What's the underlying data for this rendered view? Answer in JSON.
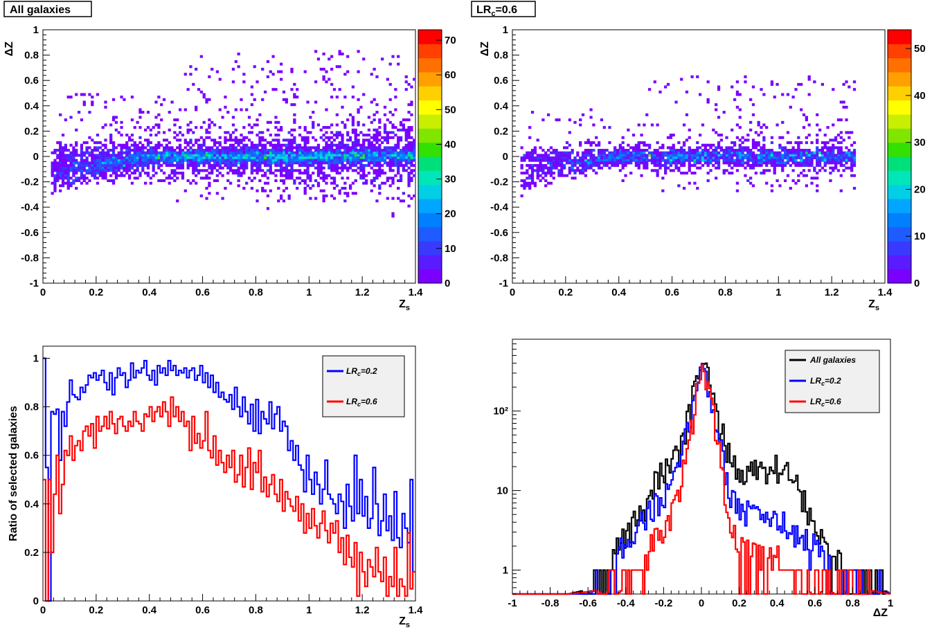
{
  "colors": {
    "blue": "#0000ff",
    "red": "#ff0000",
    "black": "#000000",
    "legend_bg": "#f0f0f0",
    "palette": [
      "#7a00ff",
      "#5a1bff",
      "#3a3aff",
      "#1f5cff",
      "#0080ff",
      "#00a6ff",
      "#00cfe6",
      "#00e6b8",
      "#00e07a",
      "#33e000",
      "#80e600",
      "#c8ef00",
      "#ffff00",
      "#ffd000",
      "#ffa000",
      "#ff7000",
      "#ff4000",
      "#ff0000"
    ]
  },
  "chart_data": [
    {
      "id": "tl",
      "type": "heatmap",
      "title": "All galaxies",
      "xlabel": "Z",
      "xlabel_sub": "s",
      "ylabel": "ΔZ",
      "xlim": [
        0,
        1.4
      ],
      "ylim": [
        -1,
        1
      ],
      "xticks": [
        "0",
        "0.2",
        "0.4",
        "0.6",
        "0.8",
        "1",
        "1.2",
        "1.4"
      ],
      "yticks": [
        "-1",
        "-0.8",
        "-0.6",
        "-0.4",
        "-0.2",
        "0",
        "0.2",
        "0.4",
        "0.6",
        "0.8",
        "1"
      ],
      "colorbar": {
        "min": 0,
        "max": 73,
        "ticks": [
          "0",
          "10",
          "20",
          "30",
          "40",
          "50",
          "60",
          "70"
        ]
      }
    },
    {
      "id": "tr",
      "type": "heatmap",
      "title": "LR",
      "title_sub": "c",
      "title_suffix": "=0.6",
      "xlabel": "Z",
      "xlabel_sub": "s",
      "ylabel": "ΔZ",
      "xlim": [
        0,
        1.4
      ],
      "ylim": [
        -1,
        1
      ],
      "xticks": [
        "0",
        "0.2",
        "0.4",
        "0.6",
        "0.8",
        "1",
        "1.2",
        "1.4"
      ],
      "yticks": [
        "-1",
        "-0.8",
        "-0.6",
        "-0.4",
        "-0.2",
        "0",
        "0.2",
        "0.4",
        "0.6",
        "0.8",
        "1"
      ],
      "colorbar": {
        "min": 0,
        "max": 54,
        "ticks": [
          "0",
          "10",
          "20",
          "30",
          "40",
          "50"
        ]
      }
    },
    {
      "id": "bl",
      "type": "line",
      "xlabel": "Z",
      "xlabel_sub": "s",
      "ylabel": "Ratio of selected galaxies",
      "xlim": [
        0,
        1.4
      ],
      "ylim": [
        0,
        1.05
      ],
      "xticks": [
        "0",
        "0.2",
        "0.4",
        "0.6",
        "0.8",
        "1",
        "1.2",
        "1.4"
      ],
      "yticks": [
        "0",
        "0.2",
        "0.4",
        "0.6",
        "0.8",
        "1"
      ],
      "legend": "top-right",
      "series": [
        {
          "name": "LR",
          "name_sub": "c",
          "name_suffix": "=0.2",
          "color": "#0000ff",
          "values": [
            1.0,
            0.55,
            0.0,
            0.78,
            0.77,
            0.79,
            0.58,
            0.78,
            0.72,
            0.82,
            0.91,
            0.85,
            0.84,
            0.83,
            0.88,
            0.86,
            0.89,
            0.93,
            0.92,
            0.94,
            0.91,
            0.93,
            0.95,
            0.9,
            0.87,
            0.94,
            0.85,
            0.92,
            0.96,
            0.93,
            0.94,
            0.88,
            0.91,
            0.98,
            0.92,
            0.95,
            0.94,
            0.96,
            0.99,
            0.93,
            0.91,
            0.95,
            0.89,
            0.97,
            0.94,
            0.96,
            0.93,
            0.99,
            0.95,
            0.97,
            0.93,
            0.95,
            0.94,
            0.96,
            0.92,
            0.95,
            0.96,
            0.91,
            0.93,
            0.97,
            0.9,
            0.94,
            0.88,
            0.93,
            0.86,
            0.9,
            0.84,
            0.86,
            0.83,
            0.82,
            0.85,
            0.79,
            0.88,
            0.8,
            0.76,
            0.84,
            0.78,
            0.73,
            0.81,
            0.7,
            0.83,
            0.69,
            0.78,
            0.75,
            0.73,
            0.82,
            0.71,
            0.77,
            0.8,
            0.7,
            0.74,
            0.72,
            0.62,
            0.66,
            0.58,
            0.64,
            0.56,
            0.54,
            0.45,
            0.6,
            0.5,
            0.44,
            0.53,
            0.48,
            0.4,
            0.46,
            0.58,
            0.44,
            0.42,
            0.4,
            0.36,
            0.44,
            0.41,
            0.3,
            0.48,
            0.39,
            0.33,
            0.6,
            0.36,
            0.5,
            0.35,
            0.43,
            0.3,
            0.34,
            0.55,
            0.4,
            0.27,
            0.33,
            0.44,
            0.29,
            0.35,
            0.25,
            0.45,
            0.26,
            0.22,
            0.36,
            0.3,
            0.24,
            0.5,
            0.12
          ]
        },
        {
          "name": "LR",
          "name_sub": "c",
          "name_suffix": "=0.6",
          "color": "#ff0000",
          "values": [
            0.5,
            0.0,
            0.5,
            0.2,
            0.44,
            0.6,
            0.36,
            0.48,
            0.62,
            0.6,
            0.68,
            0.58,
            0.64,
            0.66,
            0.62,
            0.7,
            0.72,
            0.68,
            0.73,
            0.63,
            0.76,
            0.7,
            0.72,
            0.76,
            0.71,
            0.78,
            0.73,
            0.69,
            0.75,
            0.76,
            0.72,
            0.7,
            0.74,
            0.72,
            0.78,
            0.74,
            0.73,
            0.7,
            0.77,
            0.76,
            0.8,
            0.74,
            0.78,
            0.8,
            0.76,
            0.82,
            0.78,
            0.72,
            0.84,
            0.76,
            0.8,
            0.74,
            0.78,
            0.72,
            0.74,
            0.62,
            0.76,
            0.65,
            0.69,
            0.63,
            0.66,
            0.78,
            0.62,
            0.59,
            0.68,
            0.56,
            0.62,
            0.57,
            0.53,
            0.6,
            0.55,
            0.62,
            0.49,
            0.52,
            0.6,
            0.47,
            0.55,
            0.63,
            0.46,
            0.57,
            0.53,
            0.62,
            0.45,
            0.51,
            0.43,
            0.48,
            0.52,
            0.44,
            0.41,
            0.5,
            0.37,
            0.45,
            0.42,
            0.39,
            0.37,
            0.43,
            0.33,
            0.4,
            0.28,
            0.36,
            0.3,
            0.38,
            0.31,
            0.26,
            0.32,
            0.37,
            0.29,
            0.24,
            0.32,
            0.28,
            0.33,
            0.2,
            0.26,
            0.15,
            0.27,
            0.18,
            0.14,
            0.24,
            0.02,
            0.2,
            0.12,
            0.06,
            0.17,
            0.14,
            0.1,
            0.22,
            0.12,
            0.08,
            0.18,
            0.02,
            0.1,
            0.06,
            0.22,
            0.02,
            0.09,
            0.06,
            0.02,
            0.28,
            0.05,
            0.12
          ]
        }
      ]
    },
    {
      "id": "br",
      "type": "line",
      "yscale": "log",
      "xlabel": "ΔZ",
      "xlim": [
        -1,
        1
      ],
      "ylim": [
        0.5,
        800
      ],
      "xticks": [
        "-1",
        "-0.8",
        "-0.6",
        "-0.4",
        "-0.2",
        "0",
        "0.2",
        "0.4",
        "0.6",
        "0.8",
        "1"
      ],
      "yticks": [
        "1",
        "10",
        "10²"
      ],
      "legend": "top-right",
      "series": [
        {
          "name": "All galaxies",
          "color": "#000000",
          "anchors": [
            [
              -1,
              0.5
            ],
            [
              -0.7,
              0.5
            ],
            [
              -0.56,
              0.6
            ],
            [
              -0.5,
              1
            ],
            [
              -0.44,
              2
            ],
            [
              -0.38,
              3.5
            ],
            [
              -0.3,
              6
            ],
            [
              -0.24,
              15
            ],
            [
              -0.16,
              20
            ],
            [
              -0.1,
              40
            ],
            [
              -0.06,
              100
            ],
            [
              -0.02,
              300
            ],
            [
              0.0,
              450
            ],
            [
              0.02,
              350
            ],
            [
              0.06,
              150
            ],
            [
              0.1,
              60
            ],
            [
              0.14,
              35
            ],
            [
              0.2,
              15
            ],
            [
              0.3,
              20
            ],
            [
              0.4,
              20
            ],
            [
              0.5,
              15
            ],
            [
              0.58,
              4
            ],
            [
              0.66,
              2
            ],
            [
              0.76,
              1
            ],
            [
              0.9,
              0.7
            ],
            [
              1,
              0.5
            ]
          ]
        },
        {
          "name": "LR",
          "name_sub": "c",
          "name_suffix": "=0.2",
          "color": "#0000ff",
          "anchors": [
            [
              -1,
              0.5
            ],
            [
              -0.6,
              0.5
            ],
            [
              -0.52,
              0.8
            ],
            [
              -0.46,
              1.2
            ],
            [
              -0.4,
              2.5
            ],
            [
              -0.32,
              4
            ],
            [
              -0.24,
              7
            ],
            [
              -0.16,
              10
            ],
            [
              -0.1,
              30
            ],
            [
              -0.06,
              80
            ],
            [
              -0.02,
              250
            ],
            [
              0.0,
              350
            ],
            [
              0.02,
              300
            ],
            [
              0.06,
              120
            ],
            [
              0.1,
              40
            ],
            [
              0.14,
              12
            ],
            [
              0.2,
              6
            ],
            [
              0.3,
              5
            ],
            [
              0.4,
              4.5
            ],
            [
              0.5,
              3
            ],
            [
              0.6,
              2
            ],
            [
              0.7,
              1
            ],
            [
              0.8,
              0.8
            ],
            [
              0.9,
              0.6
            ],
            [
              1,
              0.5
            ]
          ]
        },
        {
          "name": "LR",
          "name_sub": "c",
          "name_suffix": "=0.6",
          "color": "#ff0000",
          "anchors": [
            [
              -1,
              0.5
            ],
            [
              -0.7,
              0.5
            ],
            [
              -0.42,
              0.6
            ],
            [
              -0.34,
              1
            ],
            [
              -0.28,
              2
            ],
            [
              -0.2,
              3
            ],
            [
              -0.14,
              6
            ],
            [
              -0.08,
              25
            ],
            [
              -0.04,
              100
            ],
            [
              -0.02,
              200
            ],
            [
              0.0,
              280
            ],
            [
              0.02,
              250
            ],
            [
              0.06,
              100
            ],
            [
              0.1,
              30
            ],
            [
              0.14,
              5
            ],
            [
              0.2,
              2
            ],
            [
              0.3,
              1.5
            ],
            [
              0.4,
              1.5
            ],
            [
              0.5,
              1
            ],
            [
              0.6,
              0.8
            ],
            [
              0.7,
              0.7
            ],
            [
              0.8,
              0.6
            ],
            [
              0.9,
              0.55
            ],
            [
              1,
              0.5
            ]
          ]
        }
      ]
    }
  ]
}
